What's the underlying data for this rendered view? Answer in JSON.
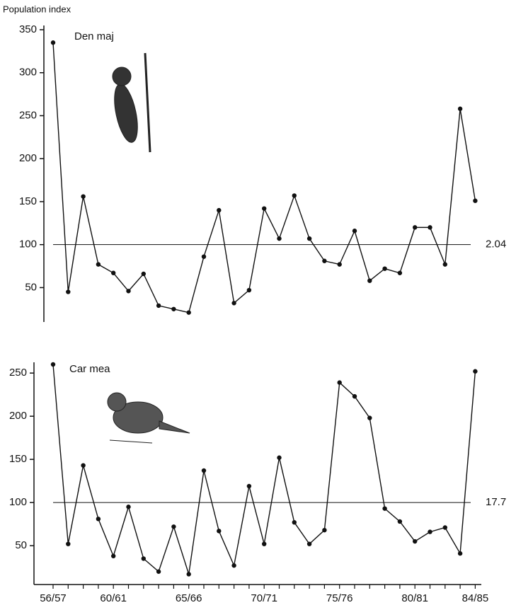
{
  "chart_data": [
    {
      "type": "line",
      "y_label": "Population index",
      "series": [
        {
          "name": "Den maj",
          "color": "#111111",
          "values": [
            335,
            45,
            156,
            77,
            67,
            46,
            66,
            29,
            25,
            21,
            86,
            140,
            32,
            47,
            142,
            107,
            157,
            107,
            81,
            77,
            116,
            58,
            72,
            67,
            120,
            120,
            77,
            258,
            151
          ]
        }
      ],
      "ylim": [
        10,
        350
      ],
      "yticks": [
        50,
        100,
        150,
        200,
        250,
        300,
        350
      ],
      "reference_line": 100,
      "annotation": "2.04"
    },
    {
      "type": "line",
      "categories": [
        "56/57",
        null,
        null,
        null,
        "60/61",
        null,
        null,
        null,
        null,
        "65/66",
        null,
        null,
        null,
        null,
        "70/71",
        null,
        null,
        null,
        null,
        "75/76",
        null,
        null,
        null,
        null,
        "80/81",
        null,
        null,
        null,
        "84/85"
      ],
      "series": [
        {
          "name": "Car mea",
          "color": "#111111",
          "values": [
            260,
            52,
            143,
            81,
            38,
            95,
            35,
            20,
            72,
            17,
            137,
            67,
            27,
            119,
            52,
            152,
            77,
            52,
            68,
            239,
            223,
            198,
            93,
            78,
            55,
            66,
            71,
            41,
            252
          ]
        }
      ],
      "ylim": [
        5,
        260
      ],
      "yticks": [
        50,
        100,
        150,
        200,
        250
      ],
      "reference_line": 100,
      "annotation": "17.7"
    }
  ]
}
